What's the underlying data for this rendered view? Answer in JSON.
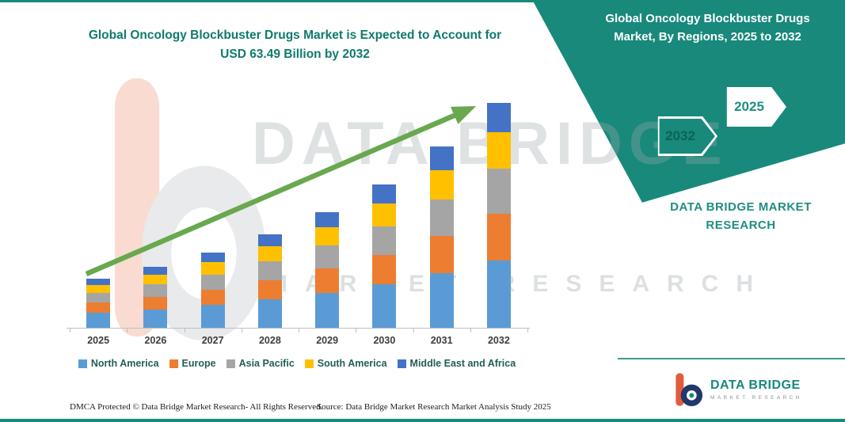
{
  "colors": {
    "accent_teal": "#18897B",
    "title_teal": "#0F7A6C",
    "trend_arrow_green": "#69A84F"
  },
  "right_panel": {
    "title": "Global Oncology Blockbuster Drugs Market, By Regions, 2025 to 2032",
    "hex_labels": [
      "2032",
      "2025"
    ],
    "brand_block": "DATA BRIDGE MARKET RESEARCH"
  },
  "watermark": {
    "primary": "DATA BRIDGE",
    "secondary": "MARKET RESEARCH"
  },
  "logo": {
    "brand": "DATA BRIDGE",
    "tagline": "MARKET RESEARCH"
  },
  "footer": {
    "dmca": "DMCA Protected © Data Bridge Market Research-  All Rights Reserved.",
    "source": "Source: Data Bridge Market Research  Market Analysis Study 2025"
  },
  "chart_data": {
    "type": "bar",
    "stacked": true,
    "title": "Global Oncology Blockbuster Drugs Market is Expected to Account for USD 63.49 Billion by 2032",
    "unit": "USD Billion",
    "categories": [
      "2025",
      "2026",
      "2027",
      "2028",
      "2029",
      "2030",
      "2031",
      "2032"
    ],
    "series": [
      {
        "name": "North America",
        "color": "#5B9BD5",
        "values": [
          4.2,
          5.2,
          6.4,
          8.0,
          9.9,
          12.2,
          15.4,
          19.1
        ]
      },
      {
        "name": "Europe",
        "color": "#ED7D31",
        "values": [
          2.9,
          3.6,
          4.4,
          5.5,
          6.8,
          8.4,
          10.6,
          13.2
        ]
      },
      {
        "name": "Asia Pacific",
        "color": "#A5A5A5",
        "values": [
          2.8,
          3.4,
          4.3,
          5.3,
          6.5,
          8.1,
          10.2,
          12.7
        ]
      },
      {
        "name": "South America",
        "color": "#FFC000",
        "values": [
          2.2,
          2.8,
          3.4,
          4.2,
          5.2,
          6.5,
          8.2,
          10.2
        ]
      },
      {
        "name": "Middle East and Africa",
        "color": "#4472C4",
        "values": [
          1.8,
          2.2,
          2.8,
          3.4,
          4.3,
          5.3,
          6.8,
          8.29
        ]
      }
    ],
    "total_2032": 63.49,
    "ylim": [
      0,
      70
    ],
    "gridlines": false,
    "legend_position": "bottom",
    "trend_arrow_color": "#69A84F",
    "annotations": [
      "green upward trend arrow from 2025 to 2032"
    ]
  }
}
